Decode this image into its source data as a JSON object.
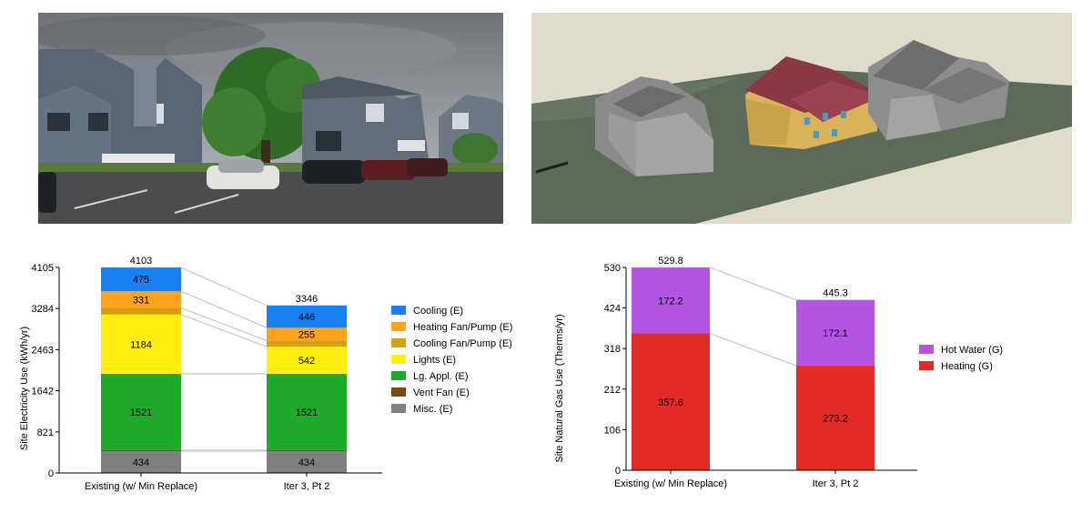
{
  "chart_data": [
    {
      "type": "bar",
      "stacked": true,
      "categories": [
        "Existing (w/ Min Replace)",
        "Iter 3, Pt 2"
      ],
      "ylabel": "Site Electricity Use (kWh/yr)",
      "yticks": [
        0,
        821,
        1642,
        2463,
        3284,
        4105
      ],
      "ylim": [
        0,
        4105
      ],
      "totals": [
        4103,
        3346
      ],
      "legend_position": "right",
      "series": [
        {
          "name": "Misc. (E)",
          "color": "#808080",
          "values": [
            434,
            434
          ],
          "labels": [
            "434",
            "434"
          ]
        },
        {
          "name": "Vent Fan (E)",
          "color": "#7a4a12",
          "values": [
            25,
            25
          ],
          "labels": [
            "",
            ""
          ]
        },
        {
          "name": "Lg. Appl. (E)",
          "color": "#1faa2a",
          "values": [
            1521,
            1521
          ],
          "labels": [
            "1521",
            "1521"
          ]
        },
        {
          "name": "Lights (E)",
          "color": "#ffee10",
          "values": [
            1184,
            542
          ],
          "labels": [
            "1184",
            "542"
          ]
        },
        {
          "name": "Cooling Fan/Pump (E)",
          "color": "#d4a011",
          "values": [
            133,
            123
          ],
          "labels": [
            "",
            ""
          ]
        },
        {
          "name": "Heating Fan/Pump (E)",
          "color": "#ffa21c",
          "values": [
            331,
            255
          ],
          "labels": [
            "331",
            "255"
          ]
        },
        {
          "name": "Cooling (E)",
          "color": "#1a7ff0",
          "values": [
            475,
            446
          ],
          "labels": [
            "475",
            "446"
          ]
        }
      ]
    },
    {
      "type": "bar",
      "stacked": true,
      "categories": [
        "Existing (w/ Min Replace)",
        "Iter 3, Pt 2"
      ],
      "ylabel": "Site Natural Gas Use (Therms/yr)",
      "yticks": [
        0,
        106,
        212,
        318,
        424,
        530
      ],
      "ylim": [
        0,
        530
      ],
      "totals": [
        529.8,
        445.3
      ],
      "legend_position": "right",
      "series": [
        {
          "name": "Heating (G)",
          "color": "#e32b25",
          "values": [
            357.6,
            273.2
          ],
          "labels": [
            "357.6",
            "273.2"
          ]
        },
        {
          "name": "Hot Water (G)",
          "color": "#b355e0",
          "values": [
            172.2,
            172.1
          ],
          "labels": [
            "172.2",
            "172.1"
          ]
        }
      ]
    }
  ]
}
